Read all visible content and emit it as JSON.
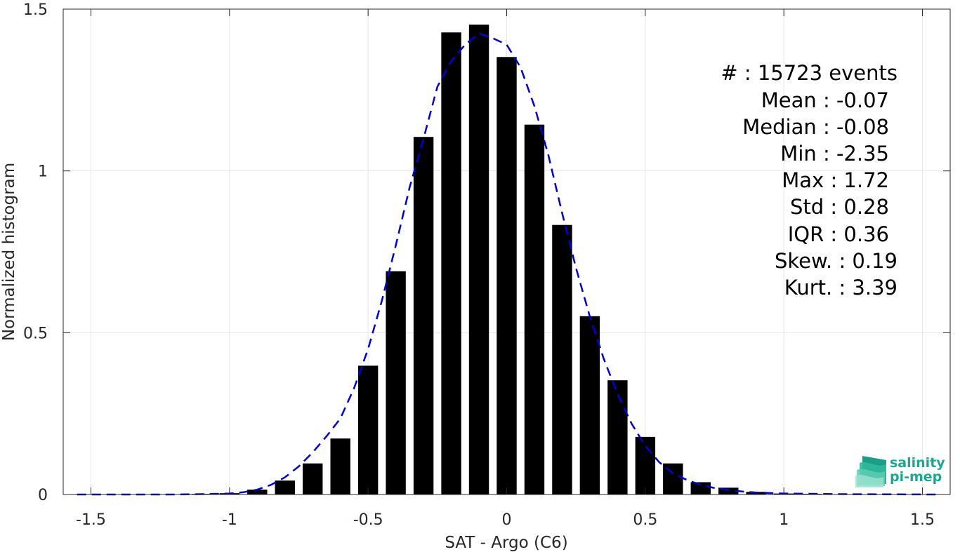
{
  "chart_data": {
    "type": "bar",
    "xlabel": "SAT - Argo (C6)",
    "ylabel": "Normalized histogram",
    "xlim": [
      -1.6,
      1.6
    ],
    "ylim": [
      0,
      1.5
    ],
    "x_ticks": [
      -1.5,
      -1,
      -0.5,
      0,
      0.5,
      1,
      1.5
    ],
    "x_tick_labels": [
      "-1.5",
      "-1",
      "-0.5",
      "0",
      "0.5",
      "1",
      "1.5"
    ],
    "y_ticks": [
      0,
      0.5,
      1,
      1.5
    ],
    "y_tick_labels": [
      "0",
      "0.5",
      "1",
      "1.5"
    ],
    "grid": true,
    "bar_color": "#000000",
    "bars": {
      "x": [
        -1.5,
        -1.4,
        -1.3,
        -1.2,
        -1.1,
        -1.0,
        -0.9,
        -0.8,
        -0.7,
        -0.6,
        -0.5,
        -0.4,
        -0.3,
        -0.2,
        -0.1,
        0.0,
        0.1,
        0.2,
        0.3,
        0.4,
        0.5,
        0.6,
        0.7,
        0.8,
        0.9,
        1.0,
        1.1,
        1.2,
        1.3,
        1.4,
        1.5
      ],
      "values": [
        0.001,
        0.001,
        0.001,
        0.001,
        0.002,
        0.004,
        0.015,
        0.043,
        0.096,
        0.173,
        0.398,
        0.69,
        1.105,
        1.428,
        1.452,
        1.352,
        1.143,
        0.833,
        0.551,
        0.353,
        0.178,
        0.096,
        0.038,
        0.021,
        0.008,
        0.003,
        0.002,
        0.001,
        0.001,
        0.001,
        0.001
      ]
    },
    "fit_curve": {
      "style": "dashed",
      "color": "#0000dd",
      "x": [
        -1.55,
        -1.4,
        -1.2,
        -1.1,
        -1.0,
        -0.95,
        -0.9,
        -0.85,
        -0.8,
        -0.75,
        -0.7,
        -0.65,
        -0.6,
        -0.55,
        -0.5,
        -0.45,
        -0.4,
        -0.35,
        -0.3,
        -0.25,
        -0.2,
        -0.15,
        -0.1,
        -0.05,
        0.0,
        0.05,
        0.1,
        0.15,
        0.2,
        0.25,
        0.3,
        0.35,
        0.4,
        0.45,
        0.5,
        0.55,
        0.6,
        0.65,
        0.7,
        0.75,
        0.8,
        0.85,
        0.9,
        1.0,
        1.2,
        1.55
      ],
      "y": [
        0.0,
        0.0,
        0.0,
        0.001,
        0.003,
        0.007,
        0.015,
        0.03,
        0.053,
        0.087,
        0.13,
        0.18,
        0.235,
        0.33,
        0.45,
        0.6,
        0.77,
        0.95,
        1.1,
        1.26,
        1.34,
        1.39,
        1.425,
        1.41,
        1.39,
        1.32,
        1.2,
        1.05,
        0.87,
        0.7,
        0.55,
        0.42,
        0.31,
        0.22,
        0.15,
        0.1,
        0.065,
        0.045,
        0.03,
        0.02,
        0.014,
        0.009,
        0.006,
        0.003,
        0.001,
        0.0
      ]
    },
    "stats_box": {
      "placement": "top-right",
      "lines": [
        "#  : 15723 events",
        "Mean : -0.07",
        "Median : -0.08",
        "Min : -2.35",
        "Max : 1.72",
        "Std : 0.28",
        "IQR : 0.36",
        "Skew. : 0.19",
        "Kurt. : 3.39"
      ]
    }
  },
  "logo": {
    "line1": "salinity",
    "line2": "pi-mep",
    "color": "#1aa88f"
  }
}
